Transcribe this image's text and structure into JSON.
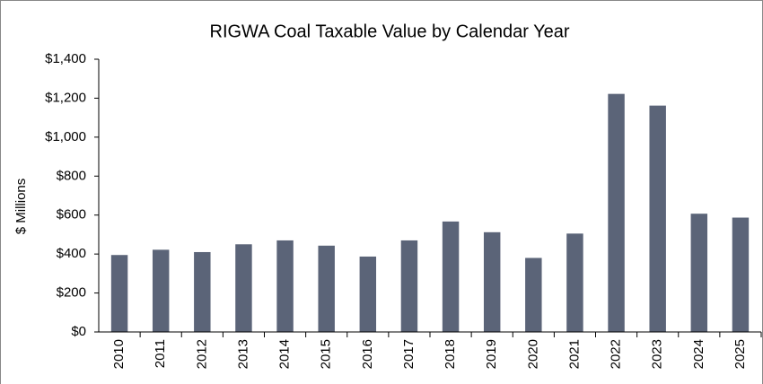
{
  "chart_data": {
    "type": "bar",
    "title": "RIGWA  Coal Taxable  Value by Calendar Year",
    "y_label": "$ Millions",
    "categories": [
      "2010",
      "2011",
      "2012",
      "2013",
      "2014",
      "2015",
      "2016",
      "2017",
      "2018",
      "2019",
      "2020",
      "2021",
      "2022",
      "2023",
      "2024",
      "2025"
    ],
    "values": [
      395,
      422,
      410,
      450,
      470,
      443,
      387,
      470,
      567,
      512,
      380,
      505,
      1222,
      1162,
      607,
      587
    ],
    "color": "#5b6478",
    "ylim": [
      0,
      1400
    ],
    "yticks": [
      {
        "value": 0,
        "label": "$0"
      },
      {
        "value": 200,
        "label": "$200"
      },
      {
        "value": 400,
        "label": "$400"
      },
      {
        "value": 600,
        "label": "$600"
      },
      {
        "value": 800,
        "label": "$800"
      },
      {
        "value": 1000,
        "label": "$1,000"
      },
      {
        "value": 1200,
        "label": "$1,200"
      },
      {
        "value": 1400,
        "label": "$1,400"
      }
    ],
    "grid": false
  }
}
